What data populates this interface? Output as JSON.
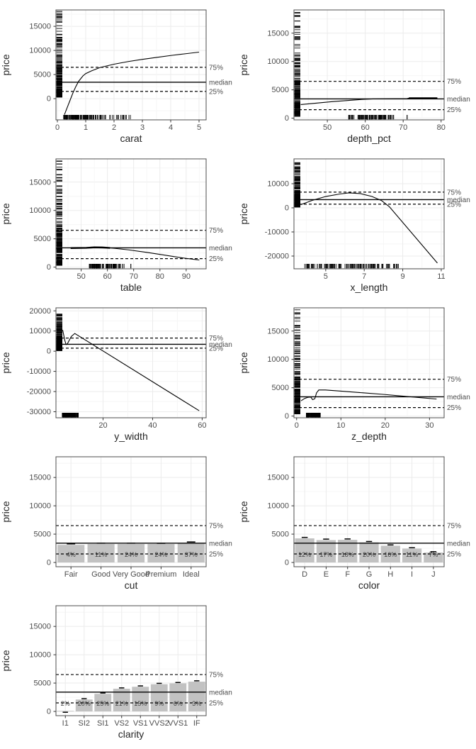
{
  "ylabel": "price",
  "annotation_labels": {
    "q75": "75%",
    "median": "median",
    "q25": "25%"
  },
  "quantiles": {
    "q25": 1500,
    "median": 3400,
    "q75": 6500
  },
  "style": {
    "bar_fill": "#c2c2c2",
    "profile_line": "#000000",
    "grid_major": "#ebebeb",
    "grid_minor": "#f6f6f6",
    "panel_border": "#4d4d4d",
    "tick_text": "#4d4d4d",
    "title_text": "#262626",
    "annotation_text": "#4d4d4d",
    "pct_text": "#3f3f3f",
    "rug": "#000000"
  },
  "price_rug_segments": [
    {
      "f": 300,
      "t": 1500,
      "n": 45
    },
    {
      "f": 1500,
      "t": 4500,
      "n": 70
    },
    {
      "f": 4500,
      "t": 7000,
      "n": 45
    },
    {
      "f": 7000,
      "t": 12000,
      "n": 38
    },
    {
      "f": 12000,
      "t": 18800,
      "n": 30
    }
  ],
  "chart_data": [
    {
      "type": "line",
      "xlabel": "carat",
      "ylabel": "price",
      "xlim": [
        -0.05,
        5.25
      ],
      "xticks": [
        0,
        1,
        2,
        3,
        4,
        5
      ],
      "ylim": [
        -4400,
        18400
      ],
      "yticks": [
        0,
        5000,
        10000,
        15000
      ],
      "points": [
        [
          0.25,
          -3300
        ],
        [
          0.35,
          -1800
        ],
        [
          0.45,
          -300
        ],
        [
          0.55,
          1200
        ],
        [
          0.65,
          2500
        ],
        [
          0.75,
          3600
        ],
        [
          0.9,
          4700
        ],
        [
          1.0,
          5200
        ],
        [
          1.2,
          5750
        ],
        [
          1.5,
          6450
        ],
        [
          2.0,
          7150
        ],
        [
          2.5,
          7700
        ],
        [
          3.0,
          8150
        ],
        [
          3.5,
          8550
        ],
        [
          4.0,
          8950
        ],
        [
          4.5,
          9300
        ],
        [
          5.0,
          9650
        ]
      ],
      "x_rug": [
        {
          "f": 0.2,
          "t": 0.75,
          "n": 70
        },
        {
          "f": 0.75,
          "t": 1.3,
          "n": 45
        },
        {
          "f": 1.3,
          "t": 2.15,
          "n": 25
        },
        {
          "f": 2.15,
          "t": 2.6,
          "n": 12
        }
      ]
    },
    {
      "type": "line",
      "xlabel": "depth_pct",
      "ylabel": "price",
      "xlim": [
        41.2,
        80.8
      ],
      "xticks": [
        50,
        60,
        70,
        80
      ],
      "ylim": [
        -300,
        19100
      ],
      "yticks": [
        0,
        5000,
        10000,
        15000
      ],
      "points": [
        [
          43,
          2400
        ],
        [
          47,
          2650
        ],
        [
          51,
          2900
        ],
        [
          55,
          3100
        ],
        [
          59,
          3300
        ],
        [
          62,
          3400
        ],
        [
          71,
          3450
        ],
        [
          71.5,
          3520
        ],
        [
          79,
          3520
        ]
      ],
      "thick_points": [
        [
          71.5,
          3520
        ],
        [
          79,
          3520
        ]
      ],
      "x_rug": [
        {
          "f": 55.5,
          "t": 58,
          "n": 12
        },
        {
          "f": 58,
          "t": 65.5,
          "n": 85
        },
        {
          "f": 65.5,
          "t": 67.5,
          "n": 10
        },
        {
          "f": 70.9,
          "t": 71.1,
          "n": 2
        }
      ]
    },
    {
      "type": "line",
      "xlabel": "table",
      "ylabel": "price",
      "xlim": [
        40.4,
        97.6
      ],
      "xticks": [
        50,
        60,
        70,
        80,
        90
      ],
      "ylim": [
        -300,
        19100
      ],
      "yticks": [
        0,
        5000,
        10000,
        15000
      ],
      "points": [
        [
          46,
          3360
        ],
        [
          52,
          3400
        ],
        [
          55,
          3490
        ],
        [
          58,
          3470
        ],
        [
          61,
          3380
        ],
        [
          63,
          3300
        ],
        [
          68,
          3050
        ],
        [
          75,
          2600
        ],
        [
          82,
          2100
        ],
        [
          89,
          1600
        ],
        [
          95,
          1250
        ]
      ],
      "thick_points": [
        [
          46,
          3360
        ],
        [
          52,
          3400
        ],
        [
          55,
          3490
        ],
        [
          58,
          3470
        ],
        [
          61,
          3380
        ]
      ],
      "x_rug": [
        {
          "f": 53,
          "t": 63,
          "n": 85
        },
        {
          "f": 63,
          "t": 66.5,
          "n": 12
        },
        {
          "f": 68.9,
          "t": 69.1,
          "n": 2
        }
      ]
    },
    {
      "type": "line",
      "xlabel": "x_length",
      "ylabel": "price",
      "xlim": [
        3.35,
        11.15
      ],
      "xticks": [
        5,
        7,
        9,
        11
      ],
      "ylim": [
        -25300,
        20300
      ],
      "yticks": [
        -20000,
        -10000,
        0,
        10000
      ],
      "points": [
        [
          3.7,
          1300
        ],
        [
          4.3,
          3100
        ],
        [
          5.0,
          4700
        ],
        [
          5.7,
          5700
        ],
        [
          6.2,
          6200
        ],
        [
          6.8,
          5900
        ],
        [
          7.4,
          4700
        ],
        [
          7.9,
          3000
        ],
        [
          8.3,
          500
        ],
        [
          10.8,
          -22900
        ]
      ],
      "x_rug": [
        {
          "f": 3.9,
          "t": 6.5,
          "n": 70
        },
        {
          "f": 6.5,
          "t": 8.0,
          "n": 45
        },
        {
          "f": 8.0,
          "t": 8.85,
          "n": 16
        }
      ]
    },
    {
      "type": "line",
      "xlabel": "y_width",
      "ylabel": "price",
      "xlim": [
        1.0,
        61.6
      ],
      "xticks": [
        20,
        40,
        60
      ],
      "ylim": [
        -33000,
        21500
      ],
      "yticks": [
        -30000,
        -20000,
        -10000,
        0,
        10000,
        20000
      ],
      "points": [
        [
          3.7,
          10500
        ],
        [
          4.1,
          8200
        ],
        [
          4.6,
          5200
        ],
        [
          5.1,
          3300
        ],
        [
          5.6,
          3600
        ],
        [
          6.3,
          5300
        ],
        [
          7.2,
          7300
        ],
        [
          8.6,
          8800
        ],
        [
          58.8,
          -29500
        ]
      ],
      "x_rug": [
        {
          "f": 3.5,
          "t": 10,
          "n": 170
        }
      ]
    },
    {
      "type": "line",
      "xlabel": "z_depth",
      "ylabel": "price",
      "xlim": [
        -0.6,
        33.3
      ],
      "xticks": [
        0,
        10,
        20,
        30
      ],
      "ylim": [
        -300,
        19100
      ],
      "yticks": [
        0,
        5000,
        10000,
        15000
      ],
      "points": [
        [
          1.0,
          2700
        ],
        [
          1.8,
          3100
        ],
        [
          2.5,
          3300
        ],
        [
          3.2,
          3350
        ],
        [
          3.6,
          2900
        ],
        [
          4.1,
          3050
        ],
        [
          4.5,
          4100
        ],
        [
          5.0,
          4600
        ],
        [
          6.5,
          4600
        ],
        [
          10,
          4400
        ],
        [
          15,
          4100
        ],
        [
          20,
          3800
        ],
        [
          25,
          3450
        ],
        [
          31.6,
          3000
        ]
      ],
      "x_rug": [
        {
          "f": 2.2,
          "t": 5.35,
          "n": 170
        }
      ]
    },
    {
      "type": "bar",
      "xlabel": "cut",
      "ylabel": "price",
      "categories": [
        "Fair",
        "Good",
        "Very Good",
        "Premium",
        "Ideal"
      ],
      "values": [
        3100,
        3250,
        3250,
        3250,
        3480
      ],
      "marker_values": [
        3280,
        3400,
        3400,
        3380,
        3620
      ],
      "pct_labels": [
        "4%",
        "11%",
        "24%",
        "24%",
        "37%"
      ],
      "label_y": 1400,
      "ylim": [
        -750,
        18650
      ],
      "yticks": [
        0,
        5000,
        10000,
        15000
      ]
    },
    {
      "type": "bar",
      "xlabel": "color",
      "ylabel": "price",
      "categories": [
        "D",
        "E",
        "F",
        "G",
        "H",
        "I",
        "J"
      ],
      "values": [
        4250,
        3950,
        4000,
        3550,
        2950,
        2450,
        1750
      ],
      "marker_values": [
        4420,
        4120,
        4150,
        3700,
        3100,
        2600,
        1900
      ],
      "pct_labels": [
        "12%",
        "17%",
        "18%",
        "20%",
        "16%",
        "11%",
        "7%"
      ],
      "label_y": 1400,
      "ylim": [
        -750,
        18650
      ],
      "yticks": [
        0,
        5000,
        10000,
        15000
      ]
    },
    {
      "type": "bar",
      "xlabel": "clarity",
      "ylabel": "price",
      "categories": [
        "I1",
        "SI2",
        "SI1",
        "VS2",
        "VS1",
        "VVS2",
        "VVS1",
        "IF"
      ],
      "values": [
        100,
        2100,
        3100,
        4000,
        4350,
        4800,
        4950,
        5250
      ],
      "marker_values": [
        -150,
        2250,
        3250,
        4150,
        4500,
        4950,
        5100,
        5400
      ],
      "pct_labels": [
        "2%",
        "20%",
        "25%",
        "21%",
        "15%",
        "9%",
        "6%",
        "3%"
      ],
      "label_y": 1400,
      "ylim": [
        -750,
        18650
      ],
      "yticks": [
        0,
        5000,
        10000,
        15000
      ]
    }
  ]
}
